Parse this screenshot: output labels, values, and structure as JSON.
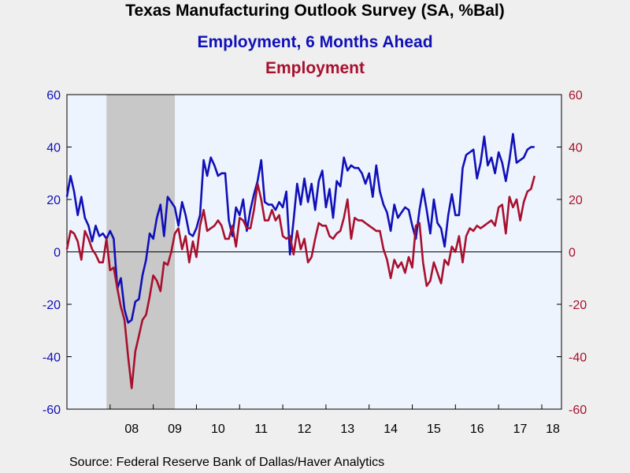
{
  "title": "Texas Manufacturing Outlook Survey (SA, %Bal)",
  "source": "Source:  Federal Reserve Bank of Dallas/Haver Analytics",
  "colors": {
    "series1": "#1010b8",
    "series2": "#a8102e",
    "plot_bg": "#eef4fd",
    "recession": "#c8c8c8",
    "page_bg": "#efefef"
  },
  "chart_data": {
    "type": "line",
    "title": "Texas Manufacturing Outlook Survey (SA, %Bal)",
    "recession": {
      "start": "2007-12",
      "end": "2009-06"
    },
    "x_ticks": [
      "08",
      "09",
      "10",
      "11",
      "12",
      "13",
      "14",
      "15",
      "16",
      "17",
      "18"
    ],
    "ylim_left": [
      -60,
      60
    ],
    "ylim_right": [
      -60,
      60
    ],
    "y_ticks": [
      -60,
      -40,
      -20,
      0,
      20,
      40,
      60
    ],
    "series": [
      {
        "name": "Employment, 6 Months Ahead",
        "axis": "left",
        "color": "#1010b8",
        "start": "2007-01",
        "values": [
          21,
          29,
          23,
          14,
          21,
          13,
          10,
          4,
          10,
          6,
          7,
          5,
          8,
          5,
          -14,
          -10,
          -22,
          -27,
          -26,
          -19,
          -18,
          -9,
          -3,
          7,
          5,
          13,
          18,
          6,
          21,
          19,
          17,
          10,
          19,
          14,
          7,
          6,
          9,
          14,
          35,
          29,
          36,
          33,
          29,
          30,
          30,
          12,
          6,
          17,
          14,
          20,
          8,
          16,
          22,
          27,
          35,
          19,
          18,
          18,
          16,
          19,
          17,
          23,
          -1,
          12,
          26,
          18,
          28,
          19,
          26,
          16,
          27,
          31,
          17,
          24,
          13,
          27,
          25,
          36,
          31,
          33,
          32,
          32,
          30,
          26,
          30,
          21,
          33,
          23,
          18,
          15,
          8,
          18,
          13,
          15,
          17,
          16,
          10,
          5,
          16,
          24,
          16,
          7,
          20,
          11,
          9,
          2,
          14,
          22,
          14,
          14,
          32,
          37,
          38,
          39,
          28,
          34,
          44,
          33,
          36,
          30,
          38,
          34,
          27,
          35,
          45,
          34,
          35,
          36,
          39,
          40,
          40
        ]
      },
      {
        "name": "Employment",
        "axis": "right",
        "color": "#a8102e",
        "start": "2007-01",
        "values": [
          1,
          8,
          7,
          4,
          -3,
          8,
          5,
          1,
          -1,
          -4,
          -4,
          5,
          -7,
          -6,
          -14,
          -21,
          -26,
          -40,
          -52,
          -38,
          -32,
          -26,
          -24,
          -17,
          -9,
          -11,
          -15,
          -4,
          -5,
          0,
          7,
          9,
          1,
          6,
          -4,
          4,
          -2,
          10,
          16,
          8,
          9,
          10,
          12,
          10,
          5,
          5,
          10,
          2,
          13,
          12,
          9,
          9,
          16,
          26,
          20,
          12,
          12,
          16,
          12,
          14,
          6,
          5,
          6,
          -1,
          8,
          1,
          5,
          -4,
          -2,
          5,
          11,
          10,
          10,
          6,
          5,
          7,
          8,
          13,
          20,
          5,
          13,
          12,
          12,
          11,
          10,
          9,
          8,
          8,
          1,
          -3,
          -10,
          -3,
          -6,
          -4,
          -8,
          -2,
          -6,
          10,
          11,
          -4,
          -13,
          -11,
          -4,
          -8,
          -12,
          -3,
          -5,
          2,
          0,
          6,
          -4,
          6,
          9,
          8,
          10,
          9,
          10,
          11,
          12,
          10,
          17,
          18,
          7,
          21,
          17,
          20,
          12,
          19,
          23,
          24,
          29
        ]
      }
    ]
  }
}
